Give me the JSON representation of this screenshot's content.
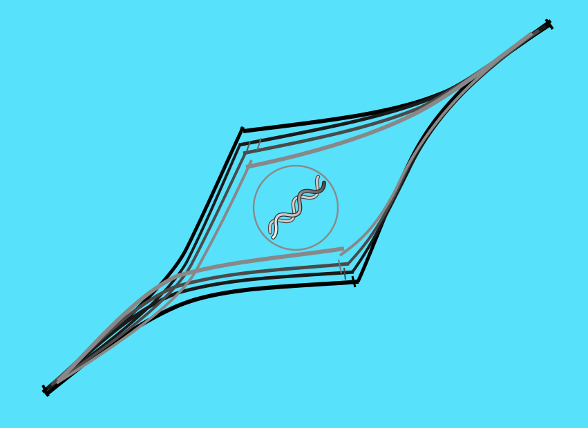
{
  "colors": {
    "background": "#58e1fb",
    "strand_black": "#000000",
    "strand_dark_gray": "#3a3a3a",
    "strand_mid_gray": "#6a6a6a",
    "strand_light_gray": "#8c8c8c",
    "nucleus_outline": "#8a8a8a",
    "dna_light": "#d8d8d8",
    "dna_dark": "#5a5a5a"
  },
  "icons": {
    "nucleus": "circle-outline",
    "dna": "dna-double-helix-icon"
  }
}
